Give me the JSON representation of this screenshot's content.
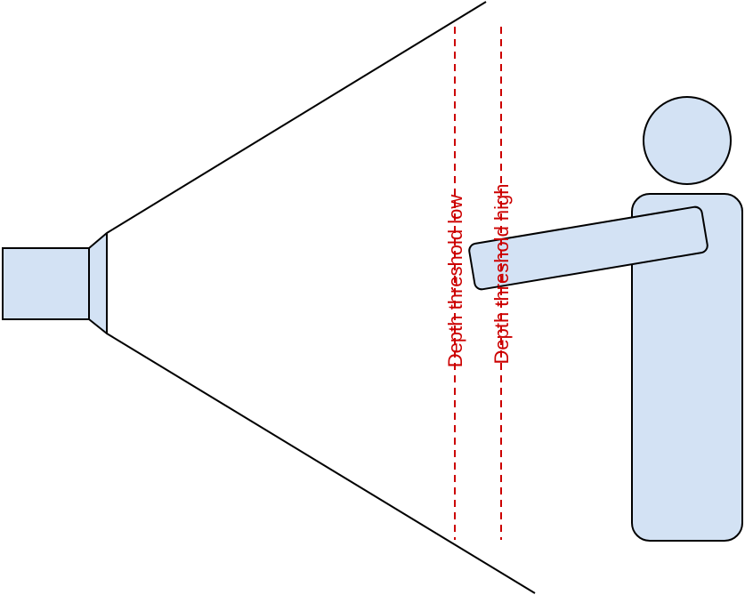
{
  "labels": {
    "threshold_low": "Depth threshold low",
    "threshold_high": "Depth threshold high"
  },
  "colors": {
    "shape_fill": "#d3e2f4",
    "stroke": "#000000",
    "threshold_line": "#cc0000",
    "background": "#ffffff"
  }
}
